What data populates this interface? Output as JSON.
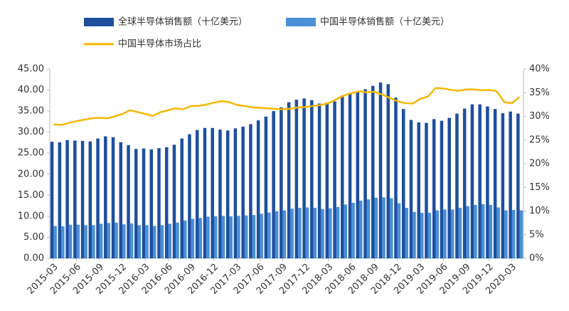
{
  "chart_data": {
    "type": "bar-line",
    "categories": [
      "2015-03",
      null,
      null,
      "2015-06",
      null,
      null,
      "2015-09",
      null,
      null,
      "2015-12",
      null,
      null,
      "2016-03",
      null,
      null,
      "2016-06",
      null,
      null,
      "2016-09",
      null,
      null,
      "2016-12",
      null,
      null,
      "2017-03",
      null,
      null,
      "2017-06",
      null,
      null,
      "2017-09",
      null,
      null,
      "2017-12",
      null,
      null,
      "2018-03",
      null,
      null,
      "2018-06",
      null,
      null,
      "2018-09",
      null,
      null,
      "2018-12",
      null,
      null,
      "2019-03",
      null,
      null,
      "2019-06",
      null,
      null,
      "2019-09",
      null,
      null,
      "2019-12",
      null,
      null,
      "2020-03",
      null
    ],
    "series": [
      {
        "name": "全球半导体销售额（十亿美元）",
        "type": "bar",
        "color": "#1d4f9e",
        "values": [
          27.7,
          27.6,
          28.1,
          28.0,
          27.9,
          27.8,
          28.5,
          29.0,
          28.8,
          27.6,
          26.9,
          26.0,
          26.1,
          25.9,
          26.2,
          26.4,
          27.0,
          28.5,
          29.5,
          30.5,
          31.0,
          31.0,
          30.6,
          30.4,
          30.9,
          31.3,
          31.9,
          32.8,
          33.7,
          35.0,
          35.9,
          37.1,
          37.7,
          38.0,
          37.6,
          36.8,
          37.0,
          37.3,
          38.7,
          39.3,
          39.5,
          40.2,
          41.0,
          41.8,
          41.4,
          38.2,
          35.5,
          32.9,
          32.3,
          32.2,
          33.1,
          32.7,
          33.4,
          34.4,
          35.6,
          36.6,
          36.6,
          36.1,
          35.5,
          34.5,
          34.9,
          34.4
        ]
      },
      {
        "name": "中国半导体销售额（十亿美元）",
        "type": "bar",
        "color": "#4a8fd8",
        "values": [
          7.7,
          7.6,
          8.0,
          8.0,
          7.9,
          7.9,
          8.2,
          8.4,
          8.5,
          8.1,
          8.3,
          7.9,
          7.9,
          7.7,
          7.9,
          8.2,
          8.5,
          9.0,
          9.4,
          9.6,
          9.9,
          10.0,
          10.1,
          10.0,
          10.1,
          10.2,
          10.3,
          10.6,
          10.9,
          11.2,
          11.4,
          11.8,
          12.0,
          12.1,
          12.0,
          11.7,
          11.9,
          12.2,
          12.8,
          13.2,
          13.7,
          14.0,
          14.4,
          14.5,
          14.3,
          13.1,
          12.0,
          11.0,
          10.8,
          10.8,
          11.4,
          11.6,
          11.6,
          12.0,
          12.4,
          12.7,
          12.9,
          12.7,
          12.1,
          11.4,
          11.5,
          11.4
        ]
      },
      {
        "name": "中国半导体市场占比",
        "type": "line",
        "axis": "y2",
        "color": "#f5b800",
        "values": [
          28.3,
          28.2,
          28.6,
          29.0,
          29.3,
          29.6,
          29.7,
          29.6,
          30.0,
          30.5,
          31.3,
          30.9,
          30.5,
          30.1,
          30.9,
          31.3,
          31.7,
          31.5,
          32.2,
          32.2,
          32.5,
          32.9,
          33.2,
          33.0,
          32.4,
          32.2,
          31.9,
          31.8,
          31.7,
          31.6,
          31.5,
          31.6,
          31.9,
          32.0,
          32.2,
          32.4,
          32.8,
          33.6,
          34.4,
          34.9,
          35.3,
          35.1,
          35.2,
          34.6,
          33.9,
          33.2,
          32.8,
          32.7,
          33.7,
          34.2,
          36.0,
          35.9,
          35.6,
          35.4,
          35.7,
          35.7,
          35.5,
          35.6,
          35.3,
          33.0,
          32.8,
          34.1
        ]
      }
    ],
    "ylim": [
      0,
      45
    ],
    "yticks": [
      {
        "value": 0,
        "label": "0.00"
      },
      {
        "value": 5,
        "label": "5.00"
      },
      {
        "value": 10,
        "label": "10.00"
      },
      {
        "value": 15,
        "label": "15.00"
      },
      {
        "value": 20,
        "label": "20.00"
      },
      {
        "value": 25,
        "label": "25.00"
      },
      {
        "value": 30,
        "label": "30.00"
      },
      {
        "value": 35,
        "label": "35.00"
      },
      {
        "value": 40,
        "label": "40.00"
      },
      {
        "value": 45,
        "label": "45.00"
      }
    ],
    "y2lim": [
      0,
      40
    ],
    "y2ticks": [
      {
        "value": 0,
        "label": "0%"
      },
      {
        "value": 5,
        "label": "5%"
      },
      {
        "value": 10,
        "label": "10%"
      },
      {
        "value": 15,
        "label": "15%"
      },
      {
        "value": 20,
        "label": "20%"
      },
      {
        "value": 25,
        "label": "25%"
      },
      {
        "value": 30,
        "label": "30%"
      },
      {
        "value": 35,
        "label": "35%"
      },
      {
        "value": 40,
        "label": "40%"
      }
    ]
  }
}
